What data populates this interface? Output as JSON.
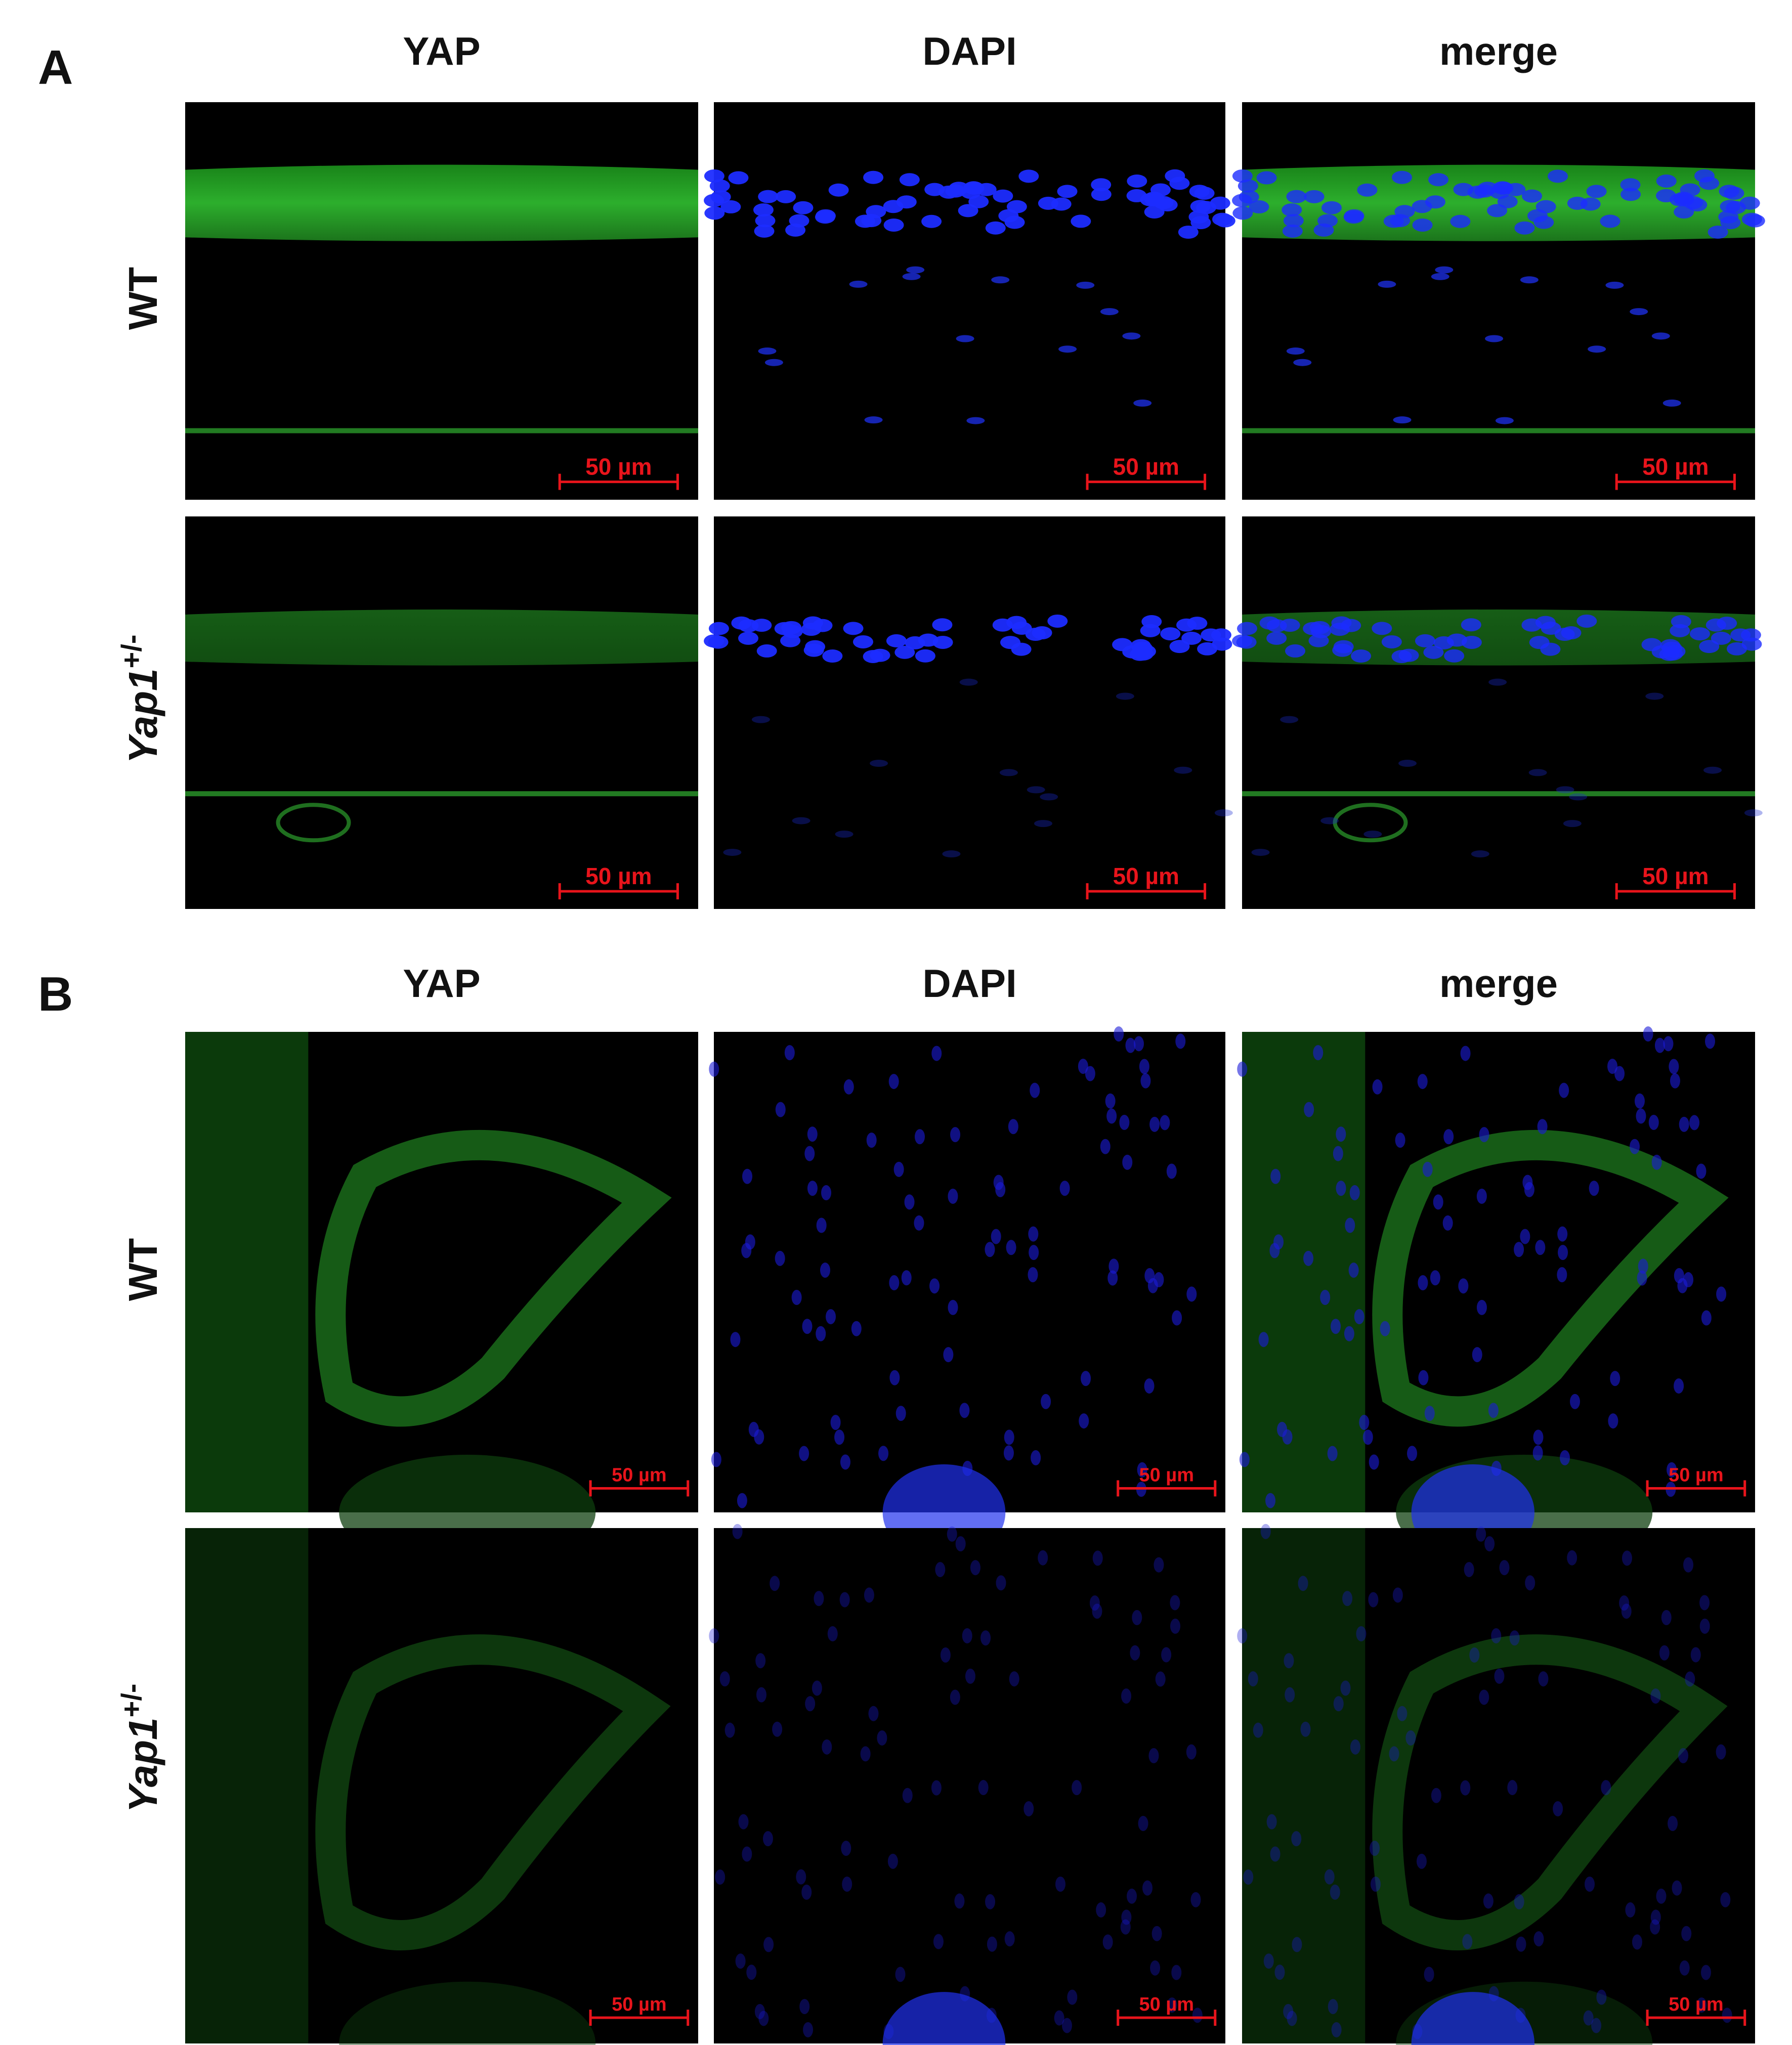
{
  "panels": [
    {
      "label": "A",
      "columns": [
        "YAP",
        "DAPI",
        "merge"
      ],
      "rows": [
        {
          "label": "WT",
          "scale_bars": [
            "50 µm",
            "50 µm",
            "50 µm"
          ]
        },
        {
          "label": {
            "gene": "Yap1",
            "superscript": "+/-"
          },
          "scale_bars": [
            "50 µm",
            "50 µm",
            "50 µm"
          ]
        }
      ]
    },
    {
      "label": "B",
      "columns": [
        "YAP",
        "DAPI",
        "merge"
      ],
      "rows": [
        {
          "label": "WT",
          "scale_bars": [
            "50 µm",
            "50 µm",
            "50 µm"
          ]
        },
        {
          "label": {
            "gene": "Yap1",
            "superscript": "+/-"
          },
          "scale_bars": [
            "50 µm",
            "50 µm",
            "50 µm"
          ]
        }
      ]
    }
  ]
}
